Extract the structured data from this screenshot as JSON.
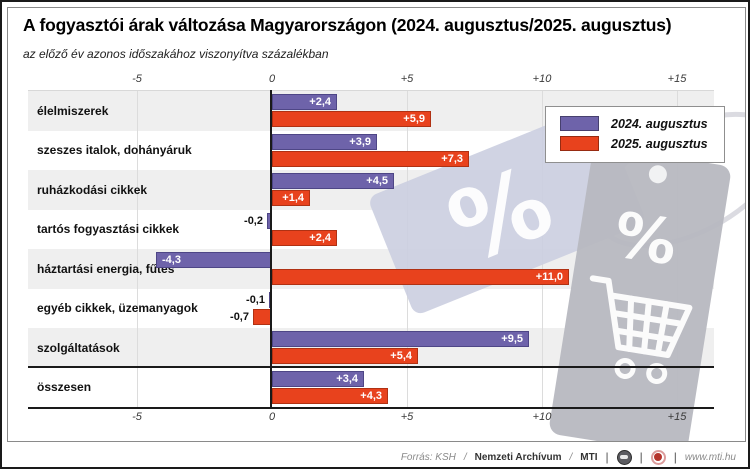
{
  "chart_data": {
    "type": "bar",
    "orientation": "horizontal",
    "title": "A fogyasztói árak változása Magyarországon (2024. augusztus/2025. augusztus)",
    "subtitle": "az előző év azonos időszakához viszonyítva százalékban",
    "unit": "%",
    "categories": [
      "élelmiszerek",
      "szeszes italok, dohányáruk",
      "ruházkodási cikkek",
      "tartós fogyasztási cikkek",
      "háztartási energia, fűtés",
      "egyéb cikkek, üzemanyagok",
      "szolgáltatások",
      "összesen"
    ],
    "series": [
      {
        "name": "2024. augusztus",
        "color": "#6e63aa",
        "border_color": "#4e4686",
        "values": [
          2.4,
          3.9,
          4.5,
          -0.2,
          -4.3,
          -0.1,
          9.5,
          3.4
        ],
        "labels": [
          "+2,4",
          "+3,9",
          "+4,5",
          "-0,2",
          "-4,3",
          "-0,1",
          "+9,5",
          "+3,4"
        ]
      },
      {
        "name": "2025. augusztus",
        "color": "#e8421d",
        "border_color": "#b03113",
        "values": [
          5.9,
          7.3,
          1.4,
          2.4,
          11.0,
          -0.7,
          5.4,
          4.3
        ],
        "labels": [
          "+5,9",
          "+7,3",
          "+1,4",
          "+2,4",
          "+11,0",
          "-0,7",
          "+5,4",
          "+4,3"
        ]
      }
    ],
    "x_ticks": [
      {
        "value": -5,
        "label": "-5"
      },
      {
        "value": 0,
        "label": "0"
      },
      {
        "value": 5,
        "label": "+5"
      },
      {
        "value": 10,
        "label": "+10"
      },
      {
        "value": 15,
        "label": "+15"
      }
    ],
    "xlim": [
      -9,
      16.4
    ],
    "grid": true,
    "legend_position": "top-right",
    "band_color": "#efefef",
    "total_row_separator": true
  },
  "legend": {
    "items": [
      {
        "label": "2024. augusztus",
        "color": "#6e63aa"
      },
      {
        "label": "2025. augusztus",
        "color": "#e8421d"
      }
    ]
  },
  "watermark": {
    "tag1_symbol": "%",
    "tag2_symbol": "%",
    "cart_icon": "shopping-cart",
    "tag1_color": "#cbcee0",
    "tag2_color": "#b7b8c0"
  },
  "footer": {
    "source_prefix": "Forrás: KSH",
    "sep1": "/",
    "source_bold1": "Nemzeti Archívum",
    "sep2": "/",
    "source_bold2": "MTI",
    "url": "www.mti.hu"
  }
}
